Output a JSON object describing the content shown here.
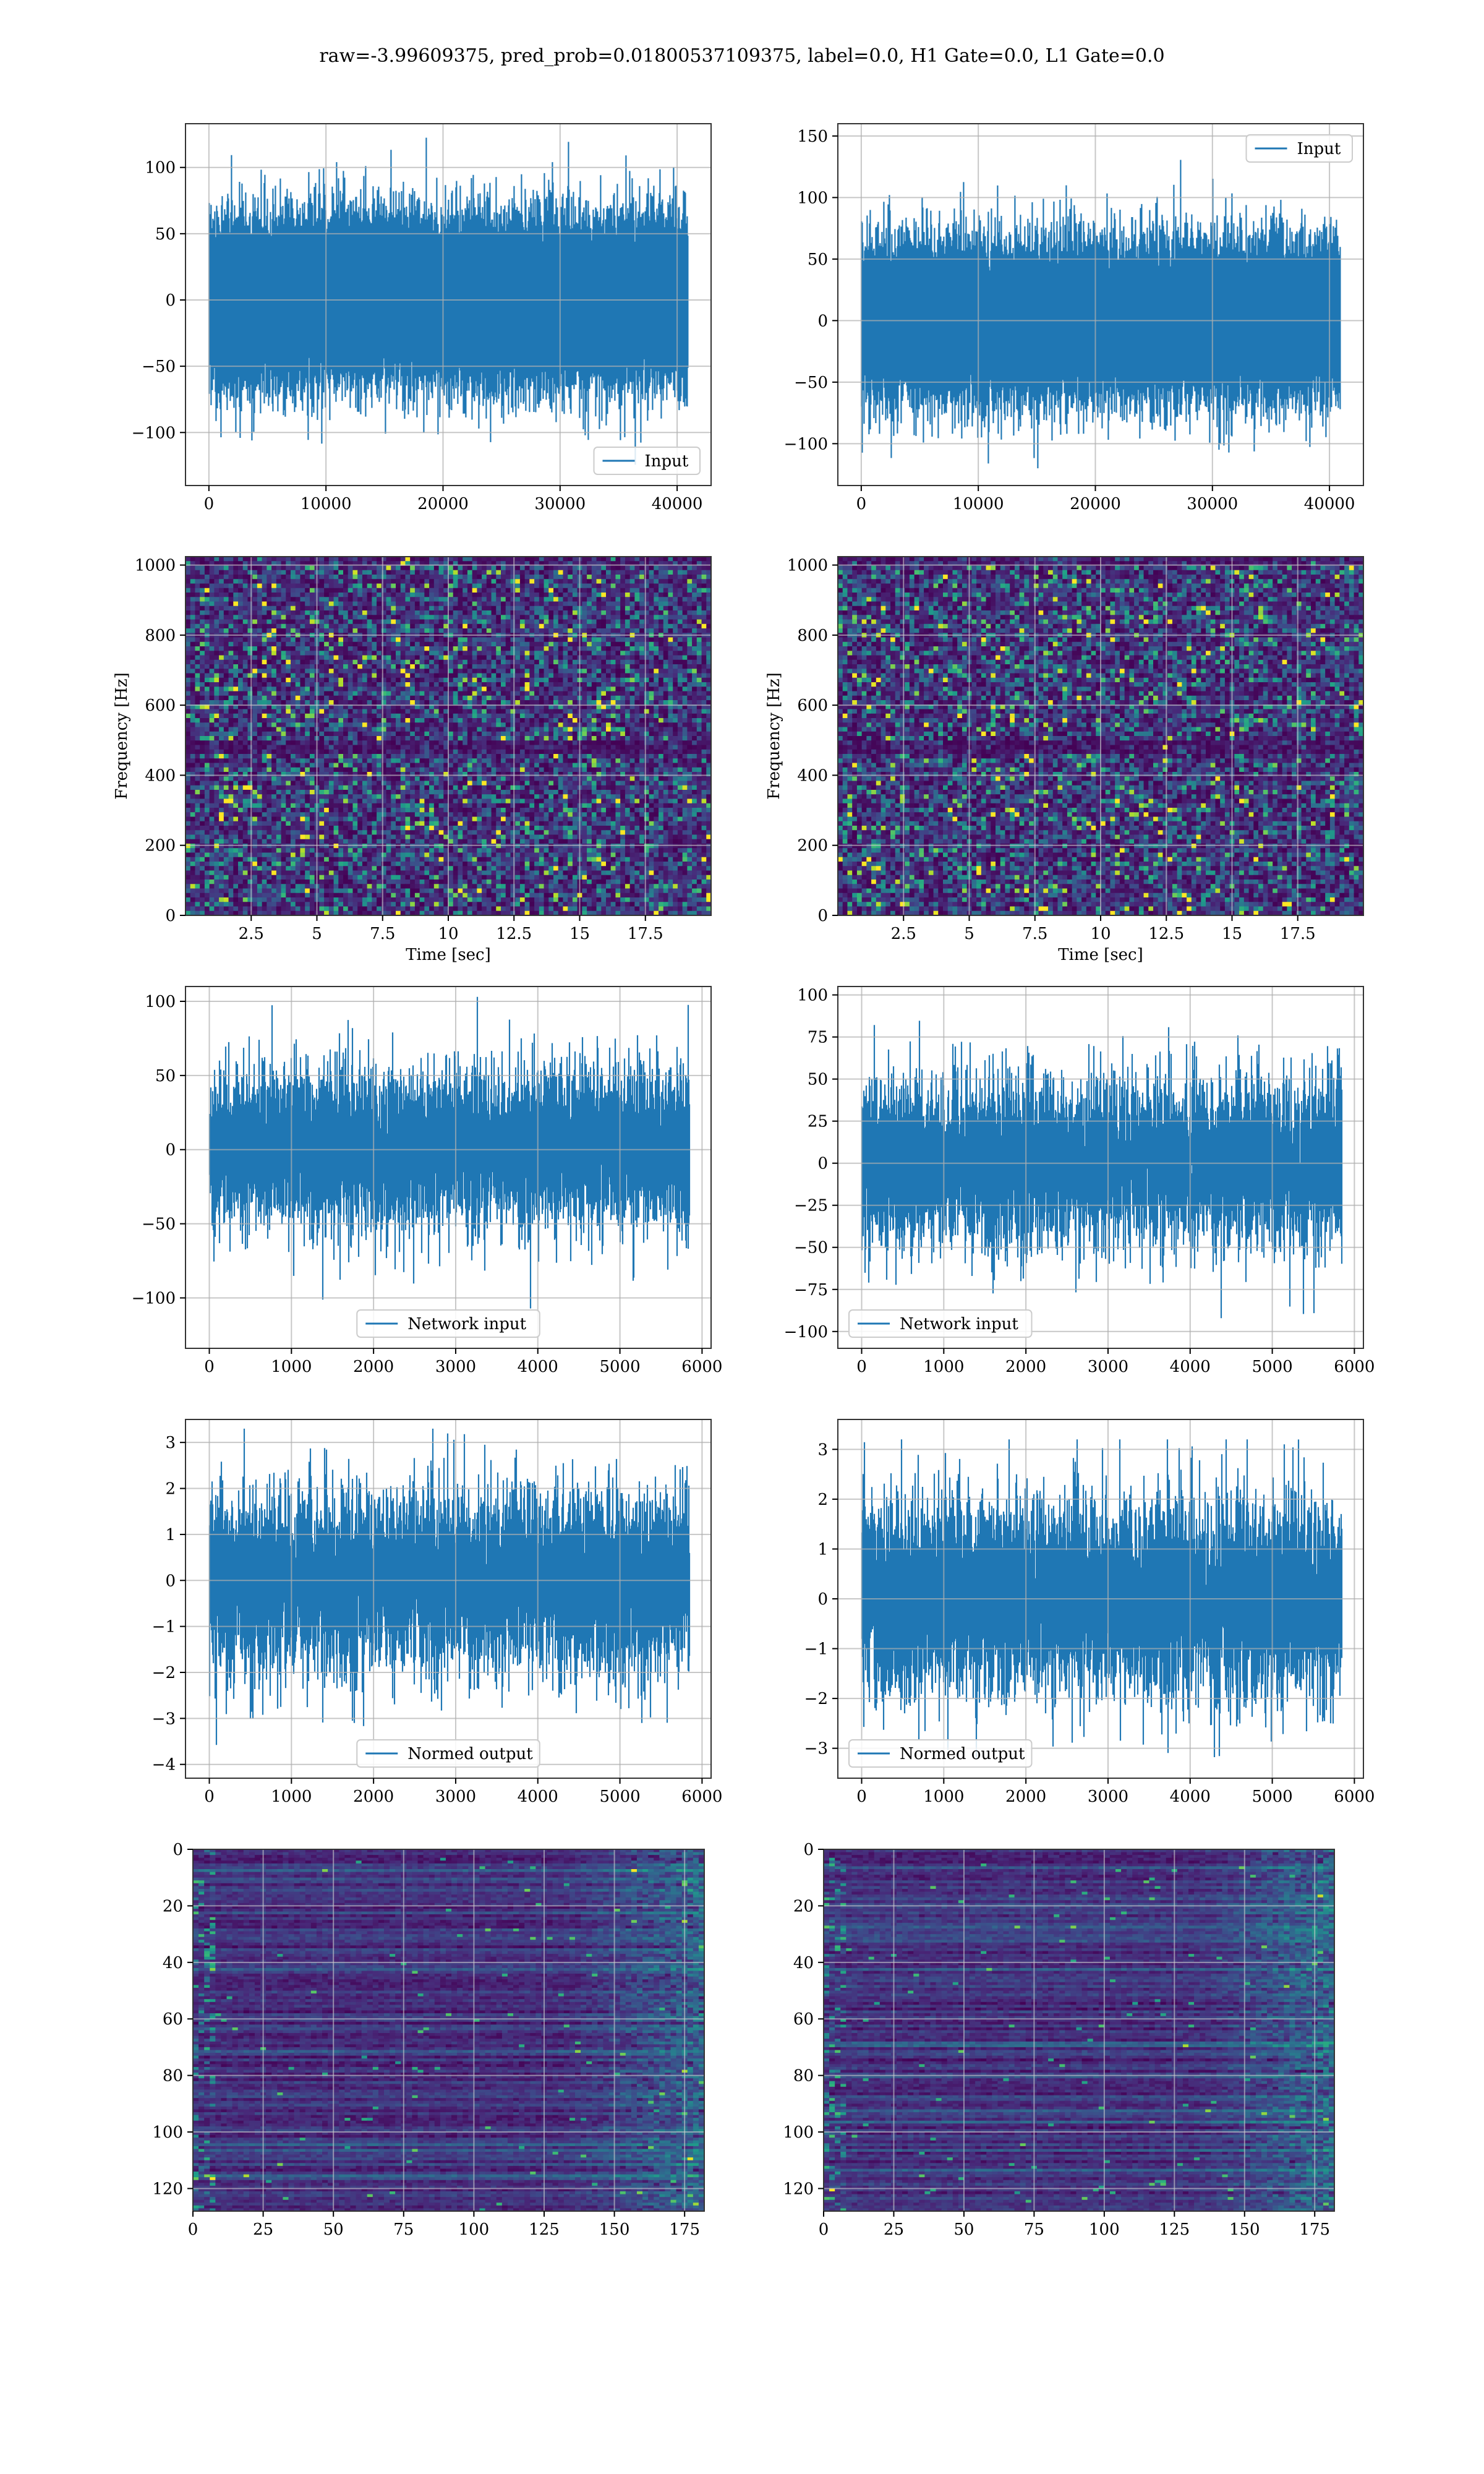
{
  "figure": {
    "title": "raw=-3.99609375, pred_prob=0.01800537109375, label=0.0, H1 Gate=0.0, L1 Gate=0.0",
    "colors": {
      "line": "#1f77b4",
      "grid": "#b0b0b0",
      "viridis_low": "#440154",
      "viridis_mid": "#3b528b",
      "viridis_teal": "#21918c",
      "viridis_green": "#5ec962",
      "viridis_high": "#fde725"
    }
  },
  "chart_data": [
    {
      "id": "h1_input",
      "type": "line",
      "title": "",
      "xlabel": "",
      "ylabel": "",
      "xlim": [
        -2000,
        42900
      ],
      "ylim": [
        -140,
        133
      ],
      "xticks": [
        0,
        10000,
        20000,
        30000,
        40000
      ],
      "yticks": [
        -100,
        -50,
        0,
        50,
        100
      ],
      "legend": {
        "label": "Input",
        "loc": "lower-right"
      },
      "series": [
        {
          "name": "Input",
          "n": 40960,
          "mean": 0,
          "std": 28,
          "min": -128,
          "max": 125
        }
      ]
    },
    {
      "id": "l1_input",
      "type": "line",
      "title": "",
      "xlabel": "",
      "ylabel": "",
      "xlim": [
        -2000,
        42900
      ],
      "ylim": [
        -134,
        160
      ],
      "xticks": [
        0,
        10000,
        20000,
        30000,
        40000
      ],
      "yticks": [
        -100,
        -50,
        0,
        50,
        100,
        150
      ],
      "legend": {
        "label": "Input",
        "loc": "upper-right"
      },
      "series": [
        {
          "name": "Input",
          "n": 40960,
          "mean": 0,
          "std": 28,
          "min": -120,
          "max": 148
        }
      ]
    },
    {
      "id": "h1_spectrogram",
      "type": "heatmap",
      "title": "",
      "xlabel": "Time [sec]",
      "ylabel": "Frequency [Hz]",
      "xlim": [
        0,
        20
      ],
      "ylim": [
        0,
        1024
      ],
      "xticks": [
        2.5,
        5.0,
        7.5,
        10.0,
        12.5,
        15.0,
        17.5
      ],
      "yticks": [
        0,
        200,
        400,
        600,
        800,
        1000
      ],
      "colormap": "viridis"
    },
    {
      "id": "l1_spectrogram",
      "type": "heatmap",
      "title": "",
      "xlabel": "Time [sec]",
      "ylabel": "Frequency [Hz]",
      "xlim": [
        0,
        20
      ],
      "ylim": [
        0,
        1024
      ],
      "xticks": [
        2.5,
        5.0,
        7.5,
        10.0,
        12.5,
        15.0,
        17.5
      ],
      "yticks": [
        0,
        200,
        400,
        600,
        800,
        1000
      ],
      "colormap": "viridis"
    },
    {
      "id": "h1_network_input",
      "type": "line",
      "title": "",
      "xlabel": "",
      "ylabel": "",
      "xlim": [
        -290,
        6110
      ],
      "ylim": [
        -134,
        110
      ],
      "xticks": [
        0,
        1000,
        2000,
        3000,
        4000,
        5000,
        6000
      ],
      "yticks": [
        -100,
        -50,
        0,
        50,
        100
      ],
      "legend": {
        "label": "Network input",
        "loc": "lower-center"
      },
      "series": [
        {
          "name": "Network input",
          "n": 5850,
          "mean": 0,
          "std": 26,
          "min": -123,
          "max": 103
        }
      ]
    },
    {
      "id": "l1_network_input",
      "type": "line",
      "title": "",
      "xlabel": "",
      "ylabel": "",
      "xlim": [
        -290,
        6110
      ],
      "ylim": [
        -110,
        105
      ],
      "xticks": [
        0,
        1000,
        2000,
        3000,
        4000,
        5000,
        6000
      ],
      "yticks": [
        -100,
        -75,
        -50,
        -25,
        0,
        25,
        50,
        75,
        100
      ],
      "legend": {
        "label": "Network input",
        "loc": "lower-left"
      },
      "series": [
        {
          "name": "Network input",
          "n": 5850,
          "mean": 0,
          "std": 24,
          "min": -104,
          "max": 100
        }
      ]
    },
    {
      "id": "h1_normed_output",
      "type": "line",
      "title": "",
      "xlabel": "",
      "ylabel": "",
      "xlim": [
        -290,
        6110
      ],
      "ylim": [
        -4.3,
        3.5
      ],
      "xticks": [
        0,
        1000,
        2000,
        3000,
        4000,
        5000,
        6000
      ],
      "yticks": [
        -4,
        -3,
        -2,
        -1,
        0,
        1,
        2,
        3
      ],
      "legend": {
        "label": "Normed output",
        "loc": "lower-center"
      },
      "series": [
        {
          "name": "Normed output",
          "n": 5850,
          "mean": 0,
          "std": 0.95,
          "min": -3.9,
          "max": 3.3
        }
      ]
    },
    {
      "id": "l1_normed_output",
      "type": "line",
      "title": "",
      "xlabel": "",
      "ylabel": "",
      "xlim": [
        -290,
        6110
      ],
      "ylim": [
        -3.6,
        3.6
      ],
      "xticks": [
        0,
        1000,
        2000,
        3000,
        4000,
        5000,
        6000
      ],
      "yticks": [
        -3,
        -2,
        -1,
        0,
        1,
        2,
        3
      ],
      "legend": {
        "label": "Normed output",
        "loc": "lower-left"
      },
      "series": [
        {
          "name": "Normed output",
          "n": 5850,
          "mean": 0,
          "std": 0.95,
          "min": -3.4,
          "max": 3.2
        }
      ]
    },
    {
      "id": "h1_features",
      "type": "heatmap",
      "title": "",
      "xlabel": "",
      "ylabel": "",
      "xlim": [
        0,
        182
      ],
      "ylim": [
        128,
        0
      ],
      "rows": 128,
      "cols": 182,
      "xticks": [
        0,
        25,
        50,
        75,
        100,
        125,
        150,
        175
      ],
      "yticks": [
        0,
        20,
        40,
        60,
        80,
        100,
        120
      ],
      "colormap": "viridis"
    },
    {
      "id": "l1_features",
      "type": "heatmap",
      "title": "",
      "xlabel": "",
      "ylabel": "",
      "xlim": [
        0,
        182
      ],
      "ylim": [
        128,
        0
      ],
      "rows": 128,
      "cols": 182,
      "xticks": [
        0,
        25,
        50,
        75,
        100,
        125,
        150,
        175
      ],
      "yticks": [
        0,
        20,
        40,
        60,
        80,
        100,
        120
      ],
      "colormap": "viridis"
    }
  ]
}
